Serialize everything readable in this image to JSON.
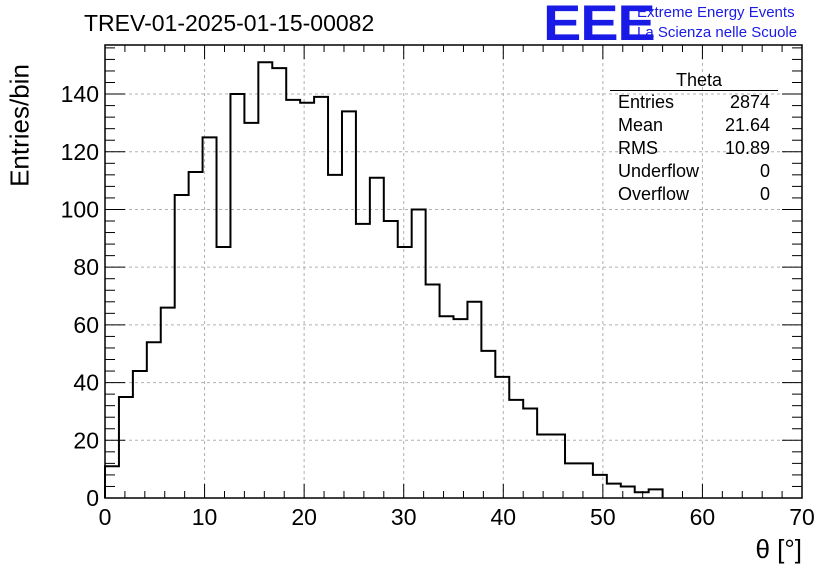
{
  "header": {
    "title": "TREV-01-2025-01-15-00082",
    "logo": {
      "mark": "EEE",
      "line1": "Extreme Energy Events",
      "line2": "La Scienza nelle Scuole"
    }
  },
  "stats_box": {
    "name": "Theta",
    "rows": [
      {
        "label": "Entries",
        "value": "2874"
      },
      {
        "label": "Mean",
        "value": "21.64"
      },
      {
        "label": "RMS",
        "value": "10.89"
      },
      {
        "label": "Underflow",
        "value": "0"
      },
      {
        "label": "Overflow",
        "value": "0"
      }
    ]
  },
  "chart_data": {
    "type": "bar",
    "style": "step-histogram",
    "title": "TREV-01-2025-01-15-00082",
    "xlabel": "θ [°]",
    "ylabel": "Entries/bin",
    "xlim": [
      0,
      70
    ],
    "ylim": [
      0,
      157
    ],
    "grid": true,
    "line_color": "#000000",
    "x_ticks": [
      0,
      10,
      20,
      30,
      40,
      50,
      60,
      70
    ],
    "y_ticks": [
      0,
      20,
      40,
      60,
      80,
      100,
      120,
      140
    ],
    "bin_width": 1.4,
    "bin_edges_start": 0,
    "values": [
      11,
      35,
      44,
      54,
      66,
      105,
      113,
      125,
      87,
      140,
      130,
      151,
      149,
      138,
      137,
      139,
      112,
      134,
      95,
      111,
      96,
      87,
      100,
      74,
      63,
      62,
      68,
      51,
      42,
      34,
      31,
      22,
      22,
      12,
      12,
      8,
      5,
      4,
      2,
      3
    ]
  }
}
